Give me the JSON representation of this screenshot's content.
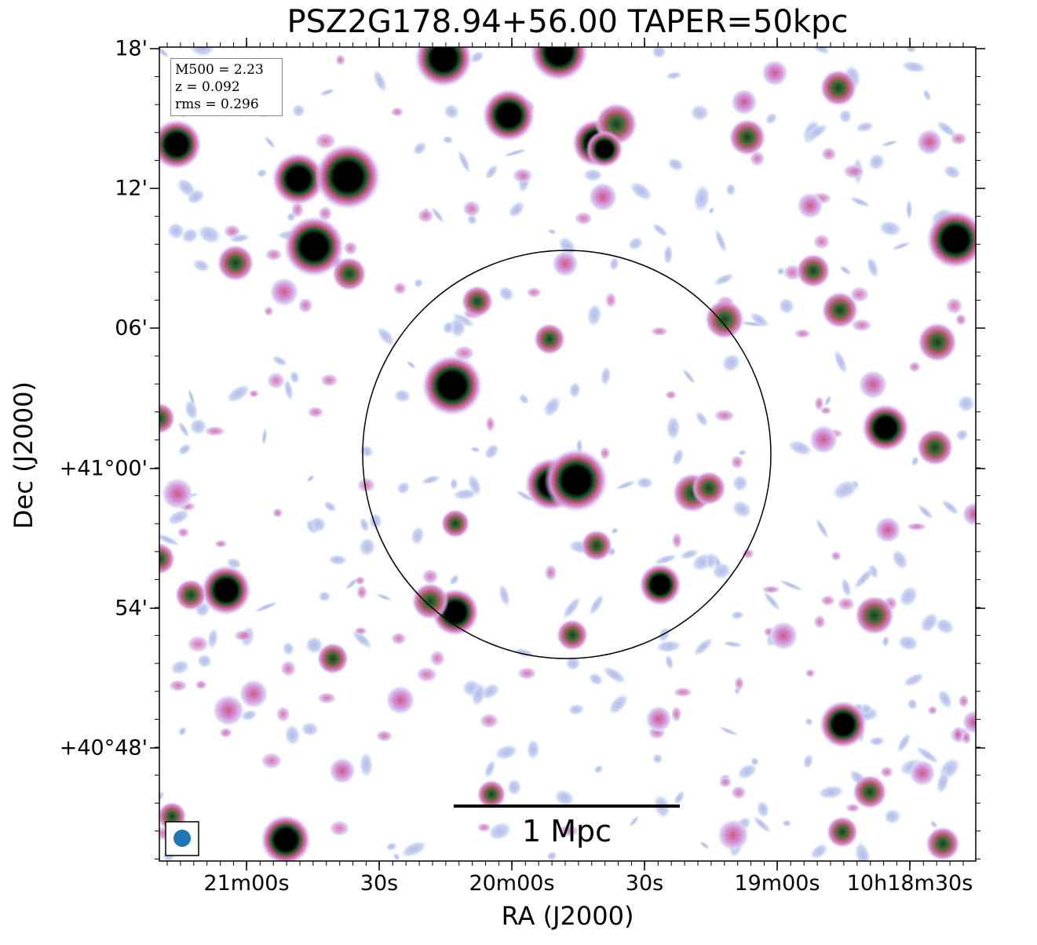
{
  "title": "PSZ2G178.94+56.00 TAPER=50kpc",
  "xlabel": "RA (J2000)",
  "ylabel": "Dec (J2000)",
  "x_ticks": [
    "21m00s",
    "30s",
    "20m00s",
    "30s",
    "19m00s",
    "10h18m30s"
  ],
  "y_ticks": [
    "18'",
    "12'",
    "06'",
    "+41°00'",
    "54'",
    "+40°48'"
  ],
  "info": {
    "mass": "M500 = 2.23",
    "redshift": "z = 0.092",
    "rms": "rms = 0.296"
  },
  "scale_bar_label": "1 Mpc",
  "colors": {
    "frame": "#000000",
    "circle": "#000000",
    "beam": "#1f77b4",
    "source_core": "#000000"
  }
}
